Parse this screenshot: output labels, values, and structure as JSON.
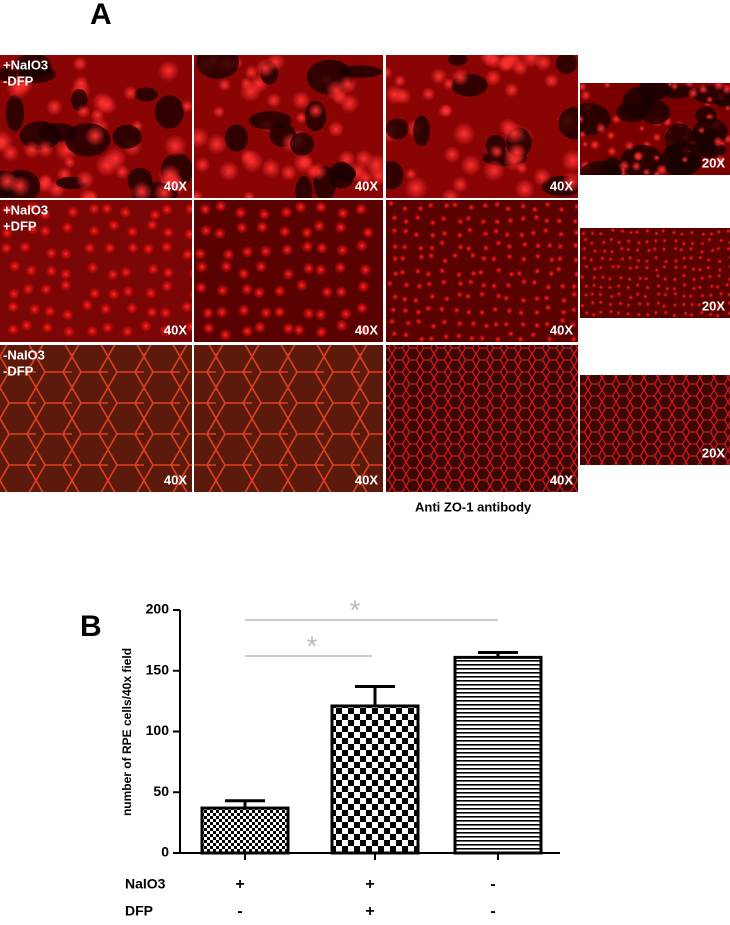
{
  "panel_a": {
    "label": "A",
    "rows": [
      {
        "label": [
          "+NaIO3",
          "-DFP"
        ],
        "magnifications": [
          "40X",
          "40X",
          "40X",
          "20X"
        ]
      },
      {
        "label": [
          "+NaIO3",
          "+DFP"
        ],
        "magnifications": [
          "40X",
          "40X",
          "40X",
          "20X"
        ]
      },
      {
        "label": [
          "-NaIO3",
          "-DFP"
        ],
        "magnifications": [
          "40X",
          "40X",
          "40X",
          "20X"
        ]
      }
    ],
    "caption": "Anti ZO-1 antibody"
  },
  "panel_b_label": "B",
  "chart_data": {
    "type": "bar",
    "y_label": "number of RPE cells/40x field",
    "values": [
      37,
      121,
      161
    ],
    "errors": [
      6,
      16,
      4
    ],
    "ylim": [
      0,
      200
    ],
    "yticks": [
      0,
      50,
      100,
      150,
      200
    ],
    "conditions": [
      {
        "label": "NaIO3",
        "signs": [
          "+",
          "+",
          "-"
        ]
      },
      {
        "label": "DFP",
        "signs": [
          "-",
          "+",
          "-"
        ]
      }
    ],
    "annotations": [
      "*",
      "*"
    ]
  }
}
